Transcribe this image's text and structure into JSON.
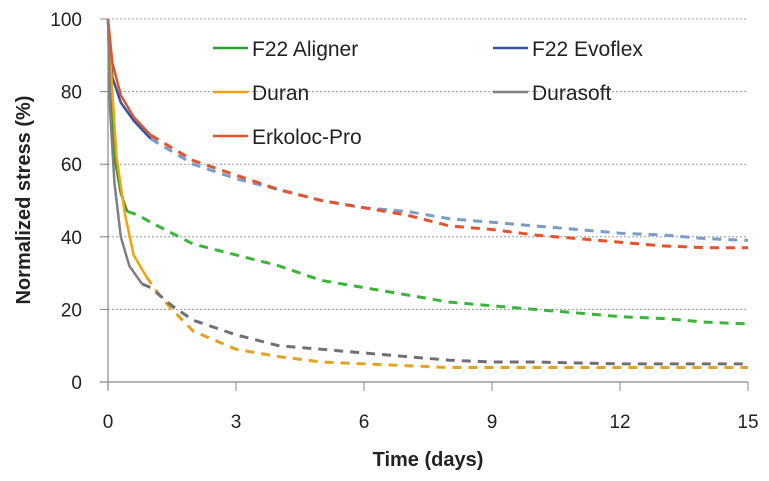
{
  "chart_data": {
    "type": "line",
    "title": "",
    "xlabel": "Time (days)",
    "ylabel": "Normalized stress (%)",
    "xlim": [
      0,
      15
    ],
    "ylim": [
      0,
      100
    ],
    "xticks": [
      0,
      3,
      6,
      9,
      12,
      15
    ],
    "yticks": [
      0,
      20,
      40,
      60,
      80,
      100
    ],
    "grid": "horizontal dotted",
    "legend_placement": "top-right, two columns",
    "series": [
      {
        "name": "F22 Aligner",
        "color": "#2e9a2e",
        "dash_color": "#38b638",
        "measured_until": 0.45,
        "x": [
          0,
          0.05,
          0.15,
          0.3,
          0.45,
          0.7,
          1,
          1.5,
          2,
          3,
          4,
          5,
          6,
          7,
          8,
          9,
          10,
          11,
          12,
          13,
          14,
          15
        ],
        "y": [
          100,
          80,
          62,
          52,
          47,
          46,
          44,
          41,
          38,
          35,
          32,
          28,
          26,
          24,
          22,
          21,
          20,
          19,
          18,
          17.5,
          16.5,
          16
        ]
      },
      {
        "name": "F22 Evoflex",
        "color": "#2f55a4",
        "dash_color": "#7a9cc6",
        "measured_until": 1,
        "x": [
          0,
          0.1,
          0.3,
          0.6,
          1,
          2,
          3,
          4,
          5,
          6,
          7,
          8,
          9,
          10,
          11,
          12,
          13,
          14,
          15
        ],
        "y": [
          100,
          84,
          77,
          72,
          67,
          60,
          56,
          53,
          50,
          48,
          47,
          45,
          44,
          43,
          42,
          41,
          40.5,
          39.5,
          39
        ]
      },
      {
        "name": "Duran",
        "color": "#f0a30a",
        "dash_color": "#e6a21c",
        "measured_until": 1,
        "x": [
          0,
          0.1,
          0.2,
          0.4,
          0.6,
          0.9,
          1.2,
          1.5,
          2,
          3,
          4,
          5,
          6,
          7,
          8,
          9,
          10,
          12,
          15
        ],
        "y": [
          100,
          80,
          62,
          46,
          35,
          29,
          24,
          20,
          14,
          9,
          7,
          5.5,
          5,
          4.5,
          4,
          4,
          4,
          4,
          4
        ]
      },
      {
        "name": "Durasoft",
        "color": "#7f7f7f",
        "dash_color": "#6f6f78",
        "measured_until": 0.9,
        "x": [
          0,
          0.05,
          0.15,
          0.3,
          0.5,
          0.8,
          1,
          1.5,
          2,
          3,
          4,
          5,
          6,
          7,
          8,
          9,
          10,
          12,
          15
        ],
        "y": [
          100,
          75,
          55,
          40,
          32,
          27,
          26,
          21,
          17,
          13,
          10,
          9,
          8,
          7,
          6,
          5.5,
          5.5,
          5,
          5
        ]
      },
      {
        "name": "Erkoloc-Pro",
        "color": "#e0522b",
        "dash_color": "#e4532a",
        "measured_until": 1,
        "x": [
          0,
          0.1,
          0.3,
          0.6,
          1,
          2,
          3,
          4,
          5,
          6,
          7,
          8,
          9,
          10,
          11,
          12,
          13,
          14,
          15
        ],
        "y": [
          100,
          88,
          79,
          73,
          68,
          61,
          57,
          53,
          50,
          48,
          46,
          43,
          42,
          40.5,
          39.5,
          38.5,
          37.5,
          37,
          37
        ]
      }
    ]
  }
}
